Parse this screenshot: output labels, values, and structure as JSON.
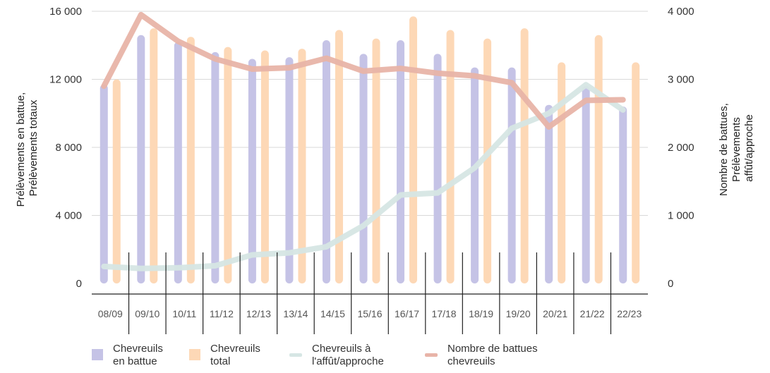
{
  "chart_data": {
    "type": "bar",
    "categories": [
      "08/09",
      "09/10",
      "10/11",
      "11/12",
      "12/13",
      "13/14",
      "14/15",
      "15/16",
      "16/17",
      "17/18",
      "18/19",
      "19/20",
      "20/21",
      "21/22",
      "22/23"
    ],
    "left_axis": {
      "title_lines": [
        "Prélèvements en battue,",
        "Prélèvements totaux"
      ],
      "ylim": [
        0,
        16000
      ],
      "ticks": [
        0,
        4000,
        8000,
        12000,
        16000
      ],
      "tick_labels": [
        "0",
        "4 000",
        "8 000",
        "12 000",
        "16 000"
      ]
    },
    "right_axis": {
      "title_lines": [
        "Nombre de battues,",
        "Prélèvements",
        "affût/approche"
      ],
      "ylim": [
        0,
        4000
      ],
      "ticks": [
        0,
        1000,
        2000,
        3000,
        4000
      ],
      "tick_labels": [
        "0",
        "1 000",
        "2 000",
        "3 000",
        "4 000"
      ]
    },
    "grid": true,
    "legend_position": "bottom",
    "series": [
      {
        "name": "Chevreuils en battue",
        "name_lines": [
          "Chevreuils",
          "en battue"
        ],
        "kind": "bar",
        "axis": "left",
        "color": "#c5c3e6",
        "values": [
          11700,
          14600,
          14200,
          13600,
          13200,
          13300,
          14300,
          13500,
          14300,
          13500,
          12700,
          12700,
          10500,
          11600,
          10400
        ]
      },
      {
        "name": "Chevreuils total",
        "name_lines": [
          "Chevreuils",
          "total"
        ],
        "kind": "bar",
        "axis": "left",
        "color": "#fdd8b6",
        "values": [
          12000,
          15000,
          14500,
          13900,
          13700,
          13800,
          14900,
          14400,
          15700,
          14900,
          14400,
          15000,
          13000,
          14600,
          13000
        ]
      },
      {
        "name": "Chevreuils à l'affût/approche",
        "name_lines": [
          "Chevreuils à",
          "l'affût/approche"
        ],
        "kind": "line",
        "axis": "right",
        "color": "#d6e6e4",
        "values": [
          250,
          220,
          230,
          260,
          420,
          450,
          540,
          850,
          1300,
          1330,
          1700,
          2280,
          2500,
          2920,
          2550
        ]
      },
      {
        "name": "Nombre de battues chevreuils",
        "name_lines": [
          "Nombre de battues",
          "chevreuils"
        ],
        "kind": "line",
        "axis": "right",
        "color": "#e8b4a8",
        "values": [
          2900,
          3950,
          3560,
          3300,
          3150,
          3170,
          3310,
          3120,
          3160,
          3090,
          3050,
          2950,
          2300,
          2690,
          2700
        ]
      }
    ]
  }
}
